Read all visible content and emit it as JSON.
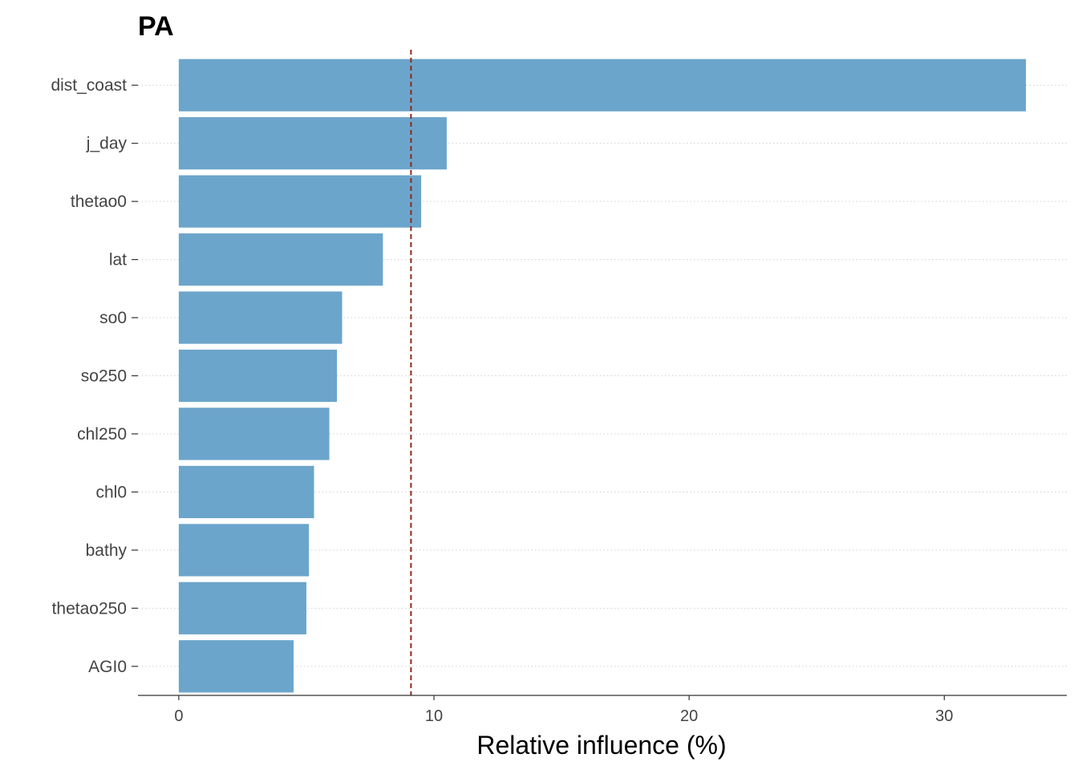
{
  "chart_data": {
    "type": "bar",
    "orientation": "horizontal",
    "title": "PA",
    "xlabel": "Relative influence (%)",
    "ylabel": "",
    "categories": [
      "dist_coast",
      "j_day",
      "thetao0",
      "lat",
      "so0",
      "so250",
      "chl250",
      "chl0",
      "bathy",
      "thetao250",
      "AGI0"
    ],
    "values": [
      33.2,
      10.5,
      9.5,
      8.0,
      6.4,
      6.2,
      5.9,
      5.3,
      5.1,
      5.0,
      4.5
    ],
    "xlim": [
      -1.6,
      34.8
    ],
    "xticks": [
      0,
      10,
      20,
      30
    ],
    "xtick_labels": [
      "0",
      "10",
      "20",
      "30"
    ],
    "reference_line": {
      "x": 9.1,
      "style": "dashed"
    },
    "grid": "horizontal-dotted",
    "colors": {
      "bar": "#6ca5cb",
      "reference_line": "#8b2a1e",
      "grid": "#d0d0d0",
      "axis": "#333333",
      "text": "#444444",
      "title": "#000000"
    }
  }
}
